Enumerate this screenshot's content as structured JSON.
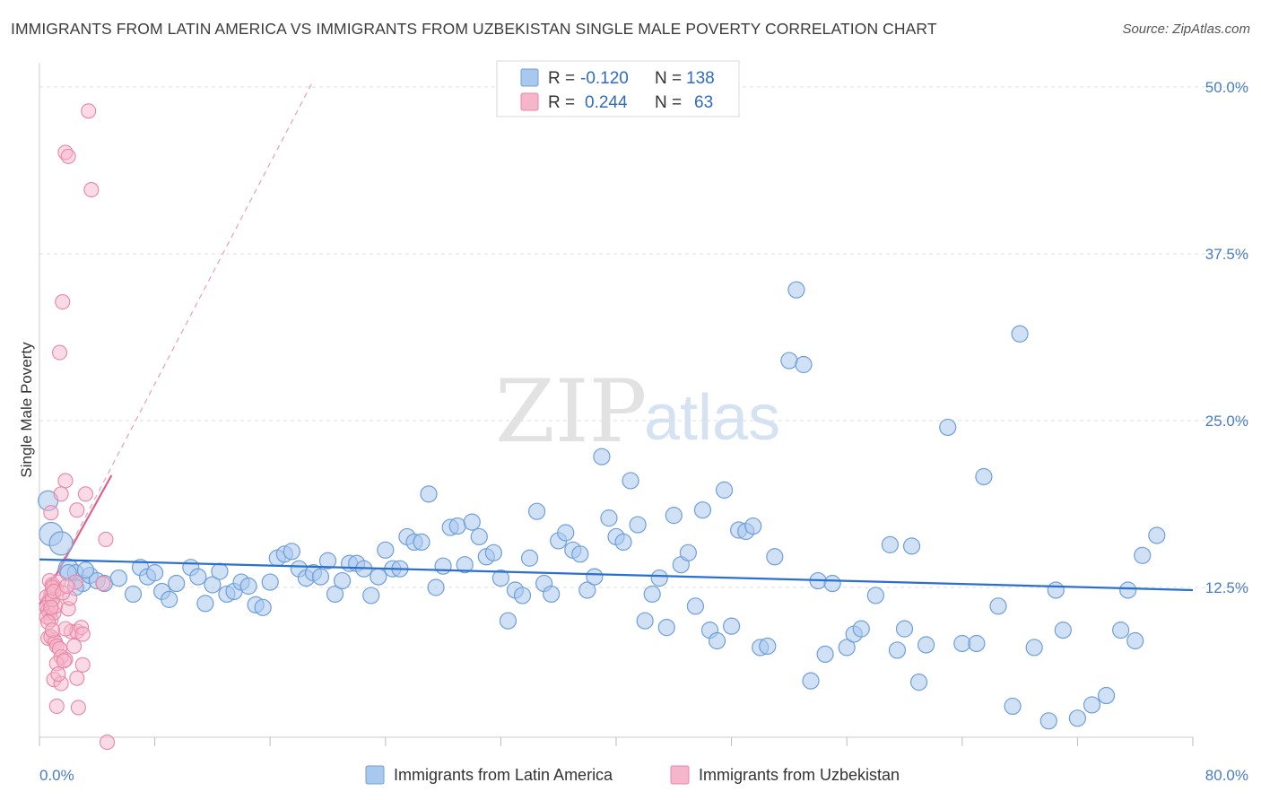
{
  "title": "IMMIGRANTS FROM LATIN AMERICA VS IMMIGRANTS FROM UZBEKISTAN SINGLE MALE POVERTY CORRELATION CHART",
  "source": "Source: ZipAtlas.com",
  "watermark": {
    "zip": "ZIP",
    "atlas": "atlas"
  },
  "legend_top": [
    {
      "r_label": "R =",
      "r_value": "-0.120",
      "n_label": "N =",
      "n_value": "138"
    },
    {
      "r_label": "R =",
      "r_value": "0.244",
      "n_label": "N =",
      "n_value": "63"
    }
  ],
  "colors": {
    "blue_fill": "#a9c8ee",
    "blue_stroke": "#6f9fd8",
    "blue_line": "#2a6fd1",
    "pink_fill": "#f5b6c9",
    "pink_stroke": "#e886a6",
    "pink_line": "#e0608a",
    "grid": "#dddddd",
    "tick_label": "#4a7cc0"
  },
  "chart_data": {
    "type": "scatter",
    "title": "IMMIGRANTS FROM LATIN AMERICA VS IMMIGRANTS FROM UZBEKISTAN SINGLE MALE POVERTY CORRELATION CHART",
    "xlabel": "",
    "ylabel": "Single Male Poverty",
    "xlim": [
      0,
      80
    ],
    "ylim": [
      0,
      52
    ],
    "x_tick_labels": [
      "0.0%",
      "80.0%"
    ],
    "y_ticks": [
      12.5,
      25.0,
      37.5,
      50.0
    ],
    "y_tick_labels": [
      "12.5%",
      "25.0%",
      "37.5%",
      "50.0%"
    ],
    "grid": true,
    "legend_position": "top-center",
    "series": [
      {
        "name": "Immigrants from Latin America",
        "r": -0.12,
        "n": 138,
        "trend": {
          "x": [
            0,
            80
          ],
          "y": [
            14.6,
            12.3
          ]
        },
        "points": [
          [
            0.6,
            19.0
          ],
          [
            0.8,
            16.5
          ],
          [
            1.5,
            15.8
          ],
          [
            2.0,
            13.9
          ],
          [
            2.5,
            13.6
          ],
          [
            3.0,
            12.8
          ],
          [
            3.5,
            13.4
          ],
          [
            4.0,
            13.0
          ],
          [
            4.5,
            12.8
          ],
          [
            5.5,
            13.2
          ],
          [
            6.5,
            12.0
          ],
          [
            7.0,
            14.0
          ],
          [
            7.5,
            13.3
          ],
          [
            8.0,
            13.6
          ],
          [
            8.5,
            12.2
          ],
          [
            9.0,
            11.6
          ],
          [
            9.5,
            12.8
          ],
          [
            10.5,
            14.0
          ],
          [
            11.0,
            13.3
          ],
          [
            11.5,
            11.3
          ],
          [
            12.0,
            12.7
          ],
          [
            12.5,
            13.7
          ],
          [
            13.0,
            12.0
          ],
          [
            13.5,
            12.2
          ],
          [
            14.0,
            12.9
          ],
          [
            14.5,
            12.6
          ],
          [
            15.0,
            11.2
          ],
          [
            15.5,
            11.0
          ],
          [
            16.0,
            12.9
          ],
          [
            16.5,
            14.7
          ],
          [
            17.0,
            15.0
          ],
          [
            17.5,
            15.2
          ],
          [
            18.0,
            13.9
          ],
          [
            18.5,
            13.2
          ],
          [
            19.0,
            13.6
          ],
          [
            19.5,
            13.3
          ],
          [
            20.0,
            14.5
          ],
          [
            20.5,
            12.0
          ],
          [
            21.0,
            13.0
          ],
          [
            21.5,
            14.3
          ],
          [
            22.0,
            14.3
          ],
          [
            22.5,
            13.9
          ],
          [
            23.0,
            11.9
          ],
          [
            23.5,
            13.3
          ],
          [
            24.0,
            15.3
          ],
          [
            24.5,
            13.9
          ],
          [
            25.0,
            13.9
          ],
          [
            25.5,
            16.3
          ],
          [
            26.0,
            15.9
          ],
          [
            26.5,
            15.9
          ],
          [
            27.0,
            19.5
          ],
          [
            27.5,
            12.5
          ],
          [
            28.0,
            14.1
          ],
          [
            28.5,
            17.0
          ],
          [
            29.0,
            17.1
          ],
          [
            29.5,
            14.2
          ],
          [
            30.0,
            17.4
          ],
          [
            30.5,
            16.3
          ],
          [
            31.0,
            14.8
          ],
          [
            31.5,
            15.1
          ],
          [
            32.0,
            13.2
          ],
          [
            32.5,
            10.0
          ],
          [
            33.0,
            12.3
          ],
          [
            33.5,
            11.9
          ],
          [
            34.0,
            14.7
          ],
          [
            34.5,
            18.2
          ],
          [
            35.0,
            12.8
          ],
          [
            35.5,
            12.0
          ],
          [
            36.0,
            16.0
          ],
          [
            36.5,
            16.6
          ],
          [
            37.0,
            15.3
          ],
          [
            37.5,
            15.0
          ],
          [
            38.0,
            12.3
          ],
          [
            38.5,
            13.3
          ],
          [
            39.0,
            22.3
          ],
          [
            39.5,
            17.7
          ],
          [
            40.0,
            16.3
          ],
          [
            40.5,
            15.9
          ],
          [
            41.0,
            20.5
          ],
          [
            41.5,
            17.2
          ],
          [
            42.0,
            10.0
          ],
          [
            42.5,
            12.0
          ],
          [
            43.0,
            13.2
          ],
          [
            43.5,
            9.5
          ],
          [
            44.0,
            17.9
          ],
          [
            44.5,
            14.2
          ],
          [
            45.0,
            15.1
          ],
          [
            45.5,
            11.1
          ],
          [
            46.0,
            18.3
          ],
          [
            46.5,
            9.3
          ],
          [
            47.0,
            8.5
          ],
          [
            47.5,
            19.8
          ],
          [
            48.0,
            9.6
          ],
          [
            48.5,
            16.8
          ],
          [
            49.0,
            16.7
          ],
          [
            49.5,
            17.1
          ],
          [
            50.0,
            8.0
          ],
          [
            50.5,
            8.1
          ],
          [
            51.0,
            14.8
          ],
          [
            52.0,
            29.5
          ],
          [
            52.5,
            34.8
          ],
          [
            53.0,
            29.2
          ],
          [
            53.5,
            5.5
          ],
          [
            54.0,
            13.0
          ],
          [
            54.5,
            7.5
          ],
          [
            55.0,
            12.8
          ],
          [
            56.0,
            8.0
          ],
          [
            56.5,
            9.0
          ],
          [
            57.0,
            9.4
          ],
          [
            58.0,
            11.9
          ],
          [
            59.0,
            15.7
          ],
          [
            59.5,
            7.8
          ],
          [
            60.0,
            9.4
          ],
          [
            60.5,
            15.6
          ],
          [
            61.0,
            5.4
          ],
          [
            61.5,
            8.2
          ],
          [
            63.0,
            24.5
          ],
          [
            64.0,
            8.3
          ],
          [
            65.0,
            8.3
          ],
          [
            65.5,
            20.8
          ],
          [
            66.5,
            11.1
          ],
          [
            67.5,
            3.6
          ],
          [
            68.0,
            31.5
          ],
          [
            69.0,
            8.0
          ],
          [
            70.0,
            2.5
          ],
          [
            70.5,
            12.3
          ],
          [
            71.0,
            9.3
          ],
          [
            72.0,
            2.7
          ],
          [
            73.0,
            3.7
          ],
          [
            74.0,
            4.4
          ],
          [
            75.0,
            9.3
          ],
          [
            75.5,
            12.3
          ],
          [
            76.0,
            8.5
          ],
          [
            76.5,
            14.9
          ],
          [
            77.5,
            16.4
          ],
          [
            2.0,
            13.6
          ],
          [
            2.5,
            12.5
          ],
          [
            3.2,
            13.8
          ]
        ],
        "sizes": {
          "large_first": 4
        }
      },
      {
        "name": "Immigrants from Uzbekistan",
        "r": 0.244,
        "n": 63,
        "trend": {
          "x": [
            0,
            5
          ],
          "y": [
            11.2,
            20.9
          ]
        },
        "trend_extended": {
          "x": [
            0,
            19
          ],
          "y": [
            11.2,
            50.5
          ]
        },
        "points": [
          [
            3.4,
            48.2
          ],
          [
            1.8,
            45.1
          ],
          [
            2.0,
            44.8
          ],
          [
            3.6,
            42.3
          ],
          [
            1.6,
            33.9
          ],
          [
            1.4,
            30.1
          ],
          [
            1.8,
            20.5
          ],
          [
            1.5,
            19.5
          ],
          [
            3.2,
            19.5
          ],
          [
            0.8,
            18.1
          ],
          [
            2.6,
            18.3
          ],
          [
            4.6,
            16.1
          ],
          [
            0.7,
            13.0
          ],
          [
            1.0,
            12.6
          ],
          [
            0.9,
            12.7
          ],
          [
            1.2,
            12.3
          ],
          [
            0.8,
            12.0
          ],
          [
            0.5,
            11.8
          ],
          [
            0.7,
            11.4
          ],
          [
            0.5,
            11.0
          ],
          [
            0.6,
            10.8
          ],
          [
            0.7,
            10.6
          ],
          [
            0.5,
            10.3
          ],
          [
            0.8,
            10.1
          ],
          [
            1.0,
            10.6
          ],
          [
            1.1,
            11.1
          ],
          [
            0.9,
            11.6
          ],
          [
            1.3,
            12.9
          ],
          [
            0.9,
            12.5
          ],
          [
            2.5,
            12.9
          ],
          [
            4.4,
            12.8
          ],
          [
            2.0,
            10.9
          ],
          [
            2.2,
            9.2
          ],
          [
            2.6,
            9.2
          ],
          [
            1.8,
            9.4
          ],
          [
            2.9,
            9.5
          ],
          [
            3.0,
            9.0
          ],
          [
            1.0,
            8.6
          ],
          [
            0.6,
            8.7
          ],
          [
            0.8,
            8.8
          ],
          [
            1.1,
            8.4
          ],
          [
            1.2,
            8.1
          ],
          [
            2.4,
            8.1
          ],
          [
            1.4,
            7.9
          ],
          [
            1.8,
            7.1
          ],
          [
            1.5,
            7.3
          ],
          [
            3.0,
            6.7
          ],
          [
            1.2,
            6.8
          ],
          [
            1.0,
            5.6
          ],
          [
            1.5,
            5.3
          ],
          [
            2.6,
            5.7
          ],
          [
            1.2,
            3.6
          ],
          [
            2.7,
            3.5
          ],
          [
            4.7,
            0.9
          ],
          [
            1.3,
            6.0
          ],
          [
            1.7,
            7.0
          ],
          [
            0.6,
            9.9
          ],
          [
            0.9,
            9.3
          ],
          [
            2.1,
            11.7
          ],
          [
            1.0,
            12.2
          ],
          [
            0.8,
            11.0
          ],
          [
            1.6,
            12.1
          ],
          [
            1.9,
            12.6
          ]
        ]
      }
    ]
  },
  "bottom_legend": [
    {
      "label": "Immigrants from Latin America"
    },
    {
      "label": "Immigrants from Uzbekistan"
    }
  ]
}
